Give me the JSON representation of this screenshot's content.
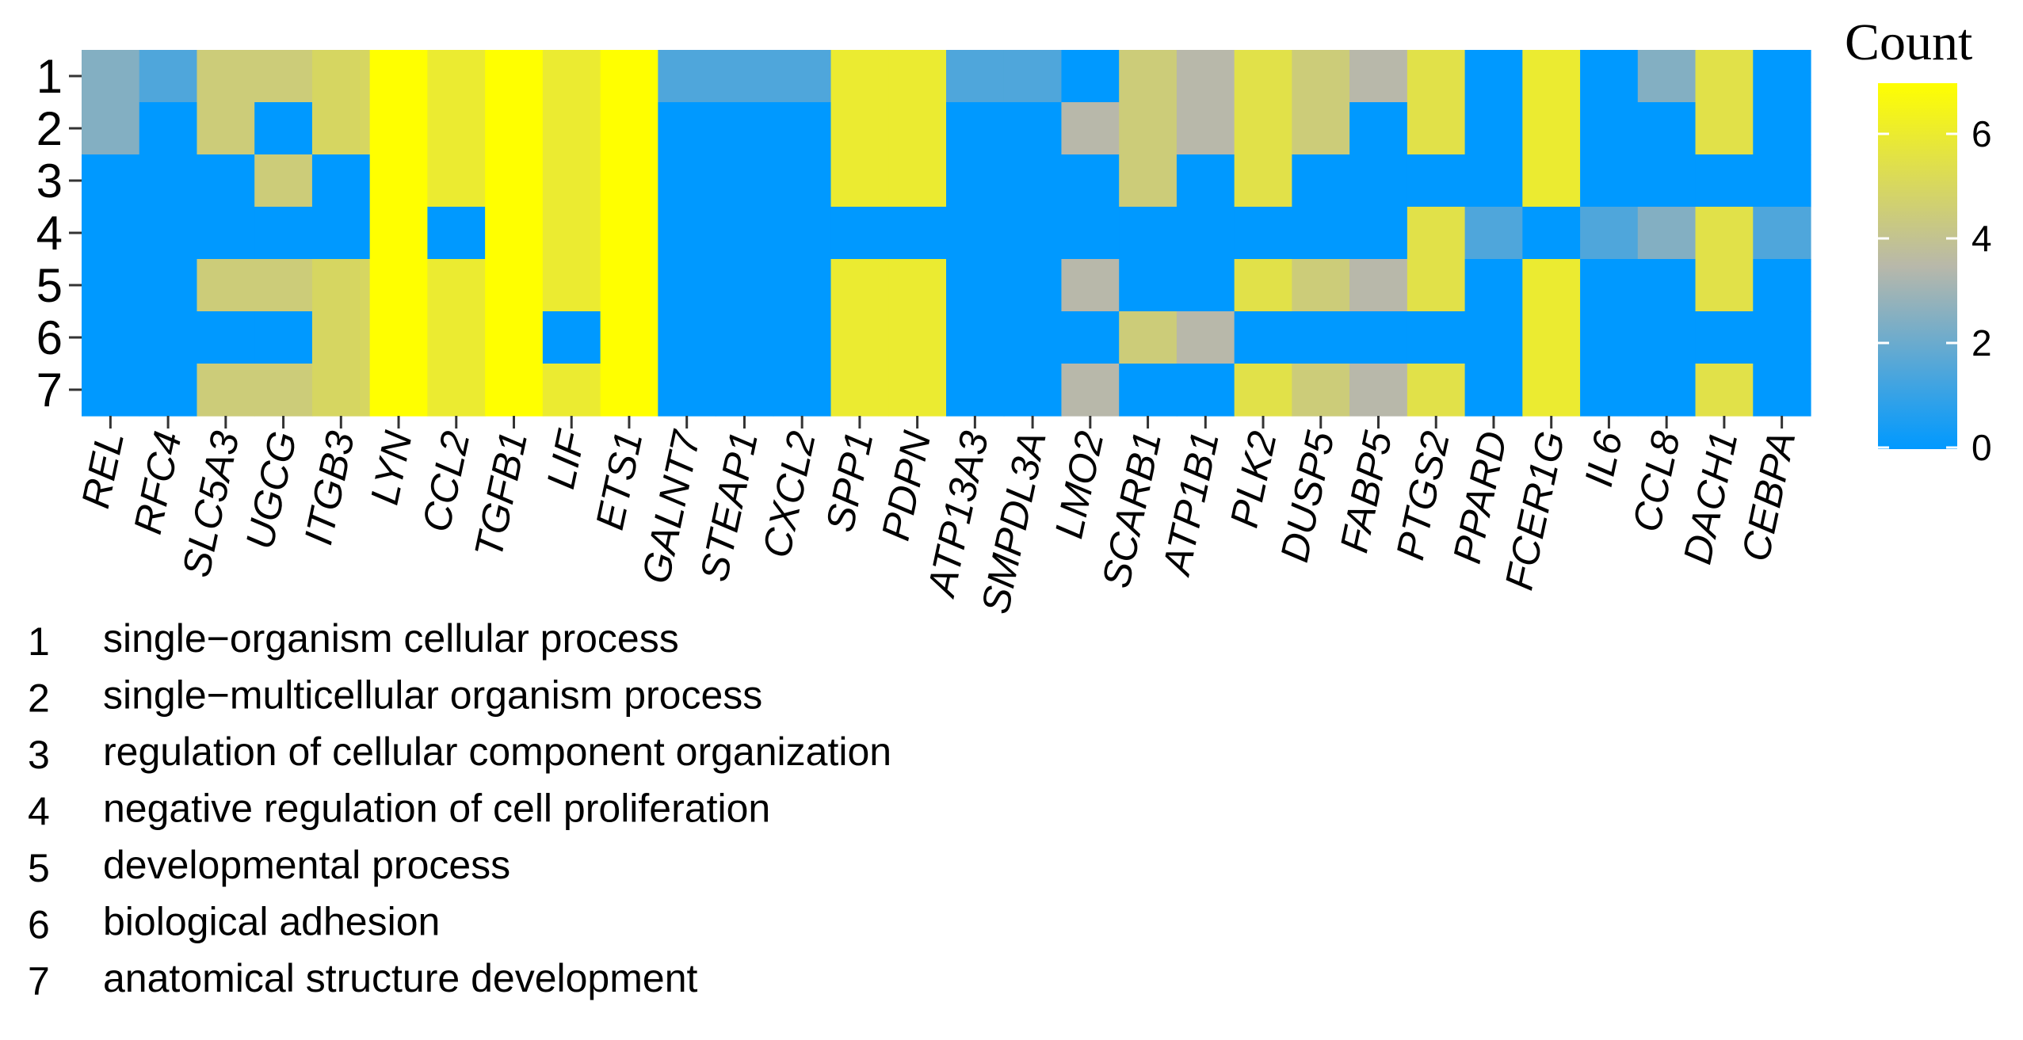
{
  "chart_data": {
    "type": "heatmap",
    "title": "",
    "rows": [
      "1",
      "2",
      "3",
      "4",
      "5",
      "6",
      "7"
    ],
    "columns": [
      "REL",
      "RFC4",
      "SLC5A3",
      "UGCG",
      "ITGB3",
      "LYN",
      "CCL2",
      "TGFB1",
      "LIF",
      "ETS1",
      "GALNT7",
      "STEAP1",
      "CXCL2",
      "SPP1",
      "PDPN",
      "ATP13A3",
      "SMPDL3A",
      "LMO2",
      "SCARB1",
      "ATP1B1",
      "PLK2",
      "DUSP5",
      "FABP5",
      "PTGS2",
      "PPARD",
      "FCER1G",
      "IL6",
      "CCL8",
      "DACH1",
      "CEBPA"
    ],
    "values": [
      [
        2.5,
        1.5,
        4.5,
        4.5,
        5,
        7,
        6,
        7,
        6,
        7,
        1.5,
        1.5,
        1.5,
        6,
        6,
        1.5,
        1.5,
        0,
        4.5,
        3.5,
        5.5,
        4.5,
        3.5,
        5.5,
        0,
        6,
        0,
        2.5,
        5.5,
        0
      ],
      [
        2.5,
        0,
        4.5,
        0,
        5,
        7,
        6,
        7,
        6,
        7,
        0,
        0,
        0,
        6,
        6,
        0,
        0,
        3.5,
        4.5,
        3.5,
        5.5,
        4.5,
        0,
        5.5,
        0,
        6,
        0,
        0,
        5.5,
        0
      ],
      [
        0,
        0,
        0,
        4.5,
        0,
        7,
        6,
        7,
        6,
        7,
        0,
        0,
        0,
        6,
        6,
        0,
        0,
        0,
        4.5,
        0,
        5.5,
        0,
        0,
        0,
        0,
        6,
        0,
        0,
        0,
        0
      ],
      [
        0,
        0,
        0,
        0,
        0,
        7,
        0,
        7,
        6,
        7,
        0,
        0,
        0,
        0,
        0,
        0,
        0,
        0,
        0,
        0,
        0,
        0,
        0,
        5.5,
        1.5,
        0,
        1.5,
        2.5,
        5.5,
        1.5
      ],
      [
        0,
        0,
        4.5,
        4.5,
        5,
        7,
        6,
        7,
        6,
        7,
        0,
        0,
        0,
        6,
        6,
        0,
        0,
        3.5,
        0,
        0,
        5.5,
        4.5,
        3.5,
        5.5,
        0,
        6,
        0,
        0,
        5.5,
        0
      ],
      [
        0,
        0,
        0,
        0,
        5,
        7,
        6,
        7,
        0,
        7,
        0,
        0,
        0,
        6,
        6,
        0,
        0,
        0,
        4.5,
        3.5,
        0,
        0,
        0,
        0,
        0,
        6,
        0,
        0,
        0,
        0
      ],
      [
        0,
        0,
        4.5,
        4.5,
        5,
        7,
        6,
        7,
        6,
        7,
        0,
        0,
        0,
        6,
        6,
        0,
        0,
        3.5,
        0,
        0,
        5.5,
        4.5,
        3.5,
        5.5,
        0,
        6,
        0,
        0,
        5.5,
        0
      ]
    ],
    "row_descriptions": [
      {
        "num": "1",
        "text": "single−organism cellular process"
      },
      {
        "num": "2",
        "text": "single−multicellular organism process"
      },
      {
        "num": "3",
        "text": "regulation of cellular component organization"
      },
      {
        "num": "4",
        "text": "negative regulation of cell proliferation"
      },
      {
        "num": "5",
        "text": "developmental process"
      },
      {
        "num": "6",
        "text": "biological adhesion"
      },
      {
        "num": "7",
        "text": "anatomical structure development"
      }
    ],
    "legend": {
      "title": "Count",
      "range": [
        0,
        7
      ],
      "ticks": [
        0,
        2,
        4,
        6
      ],
      "tick_labels": [
        "0",
        "2",
        "4",
        "6"
      ],
      "colors": {
        "low": "#0099ff",
        "mid": "#b8b8aa",
        "high": "#ffff00"
      }
    }
  }
}
